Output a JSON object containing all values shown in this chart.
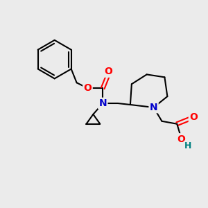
{
  "bg_color": "#ebebeb",
  "atom_colors": {
    "N": "#0000cc",
    "O": "#ff0000",
    "C": "#000000",
    "H": "#008080"
  },
  "fig_size": [
    3.0,
    3.0
  ],
  "dpi": 100
}
